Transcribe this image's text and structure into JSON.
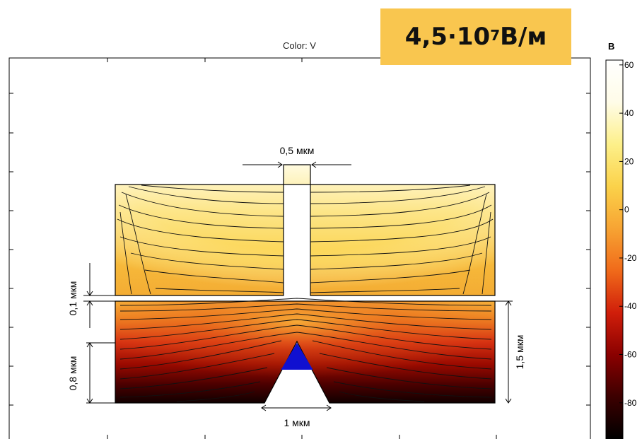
{
  "title": "Color: V",
  "badge": {
    "mantissa": "4,5·10",
    "exponent": "7",
    "unit": " В/м"
  },
  "colorbar": {
    "unit": "В",
    "ticks": [
      "60",
      "40",
      "20",
      "0",
      "-20",
      "-40",
      "-60",
      "-80"
    ],
    "range": [
      -95,
      62
    ],
    "colors": [
      "#000000",
      "#3c0000",
      "#8a0000",
      "#d01e0a",
      "#f06a1a",
      "#f7a433",
      "#fbd24a",
      "#fdf08a",
      "#fffce8",
      "#ffffff"
    ]
  },
  "dimensions": {
    "gap_width": "0,5 мкм",
    "gap_height": "0,1 мкм",
    "tip_height": "0,8 мкм",
    "bottom_height": "1,5 мкм",
    "tip_base": "1 мкм"
  },
  "colors": {
    "tip": "#1010d0",
    "badge": "#f9c64f",
    "contour": "#111111"
  }
}
